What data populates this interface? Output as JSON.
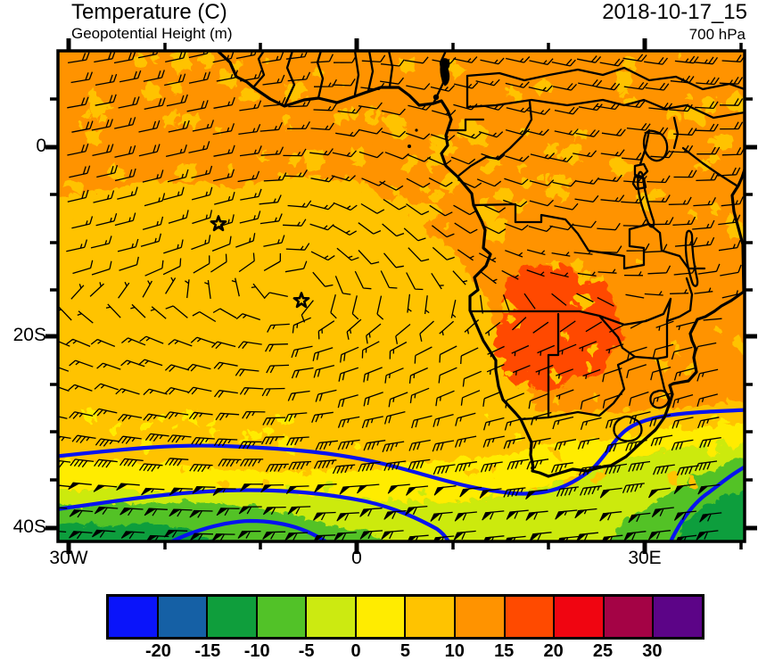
{
  "header": {
    "title": "Temperature (C)",
    "subtitle": "Geopotential Height (m)",
    "datetime": "2018-10-17_15",
    "level": "700 hPa"
  },
  "axes": {
    "y_labels": [
      "0",
      "20S",
      "40S"
    ],
    "x_labels": [
      "30W",
      "0",
      "30E"
    ]
  },
  "colorbar": {
    "labels": [
      "-20",
      "-15",
      "-10",
      "-5",
      "0",
      "5",
      "10",
      "15",
      "20",
      "25",
      "30"
    ],
    "colors": [
      "#0A14FA",
      "#1560A5",
      "#0F9E3C",
      "#52C228",
      "#CCEA11",
      "#FFEC00",
      "#FFC300",
      "#FF9300",
      "#FF4A00",
      "#F00511",
      "#A40345",
      "#5C0487"
    ]
  },
  "chart_data": {
    "type": "heatmap",
    "title": "Temperature (C)",
    "overlay": "Geopotential Height (m)",
    "valid_time": "2018-10-17_15",
    "pressure_level": "700 hPa",
    "projection": "cylindrical lat-lon over Africa / South Atlantic",
    "lon_range_deg": [
      -31,
      40.5
    ],
    "lat_range_deg": [
      10.2,
      -41.5
    ],
    "x_tick_lons": [
      "30W",
      "20W",
      "10W",
      "0",
      "10E",
      "20E",
      "30E",
      "40E"
    ],
    "y_tick_lats": [
      "5N",
      "0",
      "5S",
      "10S",
      "15S",
      "20S",
      "25S",
      "30S",
      "35S",
      "40S"
    ],
    "temperature_scale_c": [
      -20,
      -15,
      -10,
      -5,
      0,
      5,
      10,
      15,
      20,
      25,
      30
    ],
    "scale_colors": [
      "#0A14FA",
      "#1560A5",
      "#0F9E3C",
      "#52C228",
      "#CCEA11",
      "#FFEC00",
      "#FFC300",
      "#FF9300",
      "#FF4A00",
      "#F00511",
      "#A40345",
      "#5C0487"
    ],
    "contour_color": "#0713F0",
    "temperature_field": "10-15C orange over most tropics with 5-10C golden mottling; 15-20C warm core over Angola/Zambia; southward banding to 0-5C, -5-0C, -10--5C and -15--10C in far SW and SE corners",
    "geopotential_contours": "thick blue height contours arcing across 30S-42S, one crossing southeast South Africa and Lesotho",
    "wind_barbs": "easterly 15-25 kt in tropics, light variable mid South Atlantic, strong westerlies 30-60 kt with pennants south of 35S",
    "station_markers": [
      "open star near 14.5W 8S",
      "open star near 5.5W 16S"
    ]
  }
}
